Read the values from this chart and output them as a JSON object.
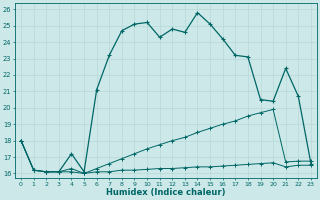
{
  "xlabel": "Humidex (Indice chaleur)",
  "bg_color": "#cce8e8",
  "grid_color": "#b8d8d8",
  "line_color": "#006666",
  "xlim_min": -0.5,
  "xlim_max": 23.5,
  "ylim_min": 15.7,
  "ylim_max": 26.4,
  "yticks": [
    16,
    17,
    18,
    19,
    20,
    21,
    22,
    23,
    24,
    25,
    26
  ],
  "xticks": [
    0,
    1,
    2,
    3,
    4,
    5,
    6,
    7,
    8,
    9,
    10,
    11,
    12,
    13,
    14,
    15,
    16,
    17,
    18,
    19,
    20,
    21,
    22,
    23
  ],
  "s1_x": [
    0,
    1,
    2,
    3,
    4,
    5,
    6,
    7,
    8,
    9,
    10,
    11,
    12,
    13,
    14,
    15,
    16,
    17,
    18,
    19,
    20,
    21,
    22,
    23
  ],
  "s1_y": [
    18.0,
    16.2,
    16.1,
    16.1,
    16.1,
    16.0,
    16.1,
    16.1,
    16.2,
    16.2,
    16.25,
    16.3,
    16.3,
    16.35,
    16.4,
    16.4,
    16.45,
    16.5,
    16.55,
    16.6,
    16.65,
    16.4,
    16.5,
    16.5
  ],
  "s2_x": [
    0,
    1,
    2,
    3,
    4,
    5,
    6,
    7,
    8,
    9,
    10,
    11,
    12,
    13,
    14,
    15,
    16,
    17,
    18,
    19,
    20,
    21,
    22,
    23
  ],
  "s2_y": [
    18.0,
    16.2,
    16.1,
    16.1,
    16.3,
    16.0,
    16.3,
    16.6,
    16.9,
    17.2,
    17.5,
    17.75,
    18.0,
    18.2,
    18.5,
    18.75,
    19.0,
    19.2,
    19.5,
    19.7,
    19.9,
    16.7,
    16.75,
    16.75
  ],
  "s3_x": [
    0,
    1,
    2,
    3,
    4,
    5,
    6,
    7,
    8,
    9,
    10,
    11,
    12,
    13,
    14,
    15,
    16,
    17,
    18,
    19,
    20,
    21,
    22,
    23
  ],
  "s3_y": [
    18.0,
    16.2,
    16.1,
    16.1,
    17.2,
    16.1,
    21.1,
    23.2,
    24.7,
    25.1,
    25.2,
    24.3,
    24.8,
    24.6,
    25.8,
    25.1,
    24.2,
    23.2,
    23.1,
    20.5,
    20.4,
    22.4,
    20.7,
    16.6
  ]
}
